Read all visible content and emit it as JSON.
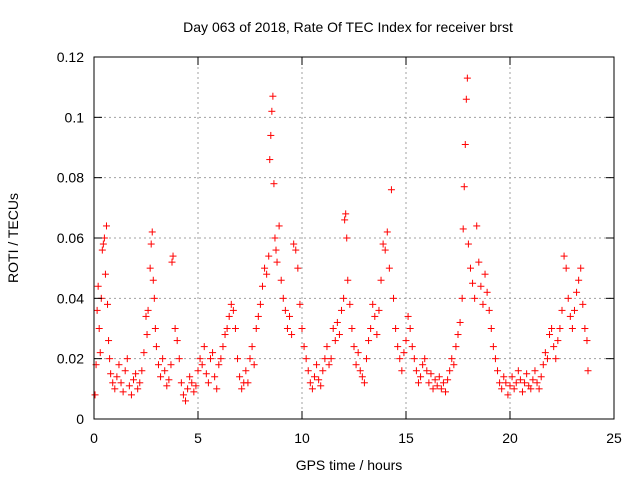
{
  "chart_data": {
    "type": "scatter",
    "title": "Day 063 of 2018, Rate Of TEC Index for receiver brst",
    "xlabel": "GPS time / hours",
    "ylabel": "ROTI / TECUs",
    "xlim": [
      0,
      25
    ],
    "ylim": [
      0,
      0.12
    ],
    "xticks": [
      0,
      5,
      10,
      15,
      20,
      25
    ],
    "xtick_labels": [
      "0",
      "5",
      "10",
      "15",
      "20",
      "25"
    ],
    "yticks": [
      0,
      0.02,
      0.04,
      0.06,
      0.08,
      0.1,
      0.12
    ],
    "ytick_labels": [
      "0",
      "0.02",
      "0.04",
      "0.06",
      "0.08",
      "0.1",
      "0.12"
    ],
    "grid": true,
    "marker": "+",
    "color": "#ff0000",
    "series": [
      {
        "name": "ROTI",
        "points": [
          [
            0.05,
            0.008
          ],
          [
            0.1,
            0.018
          ],
          [
            0.15,
            0.036
          ],
          [
            0.2,
            0.044
          ],
          [
            0.25,
            0.03
          ],
          [
            0.3,
            0.022
          ],
          [
            0.35,
            0.04
          ],
          [
            0.4,
            0.056
          ],
          [
            0.45,
            0.058
          ],
          [
            0.5,
            0.06
          ],
          [
            0.55,
            0.048
          ],
          [
            0.6,
            0.064
          ],
          [
            0.65,
            0.038
          ],
          [
            0.7,
            0.026
          ],
          [
            0.75,
            0.02
          ],
          [
            0.8,
            0.015
          ],
          [
            0.9,
            0.012
          ],
          [
            1.0,
            0.01
          ],
          [
            1.1,
            0.014
          ],
          [
            1.2,
            0.018
          ],
          [
            1.3,
            0.012
          ],
          [
            1.4,
            0.009
          ],
          [
            1.5,
            0.016
          ],
          [
            1.6,
            0.02
          ],
          [
            1.7,
            0.011
          ],
          [
            1.8,
            0.008
          ],
          [
            1.9,
            0.013
          ],
          [
            2.0,
            0.015
          ],
          [
            2.1,
            0.01
          ],
          [
            2.2,
            0.012
          ],
          [
            2.3,
            0.016
          ],
          [
            2.4,
            0.022
          ],
          [
            2.5,
            0.034
          ],
          [
            2.55,
            0.028
          ],
          [
            2.6,
            0.036
          ],
          [
            2.7,
            0.05
          ],
          [
            2.75,
            0.058
          ],
          [
            2.8,
            0.062
          ],
          [
            2.85,
            0.046
          ],
          [
            2.9,
            0.04
          ],
          [
            2.95,
            0.03
          ],
          [
            3.0,
            0.024
          ],
          [
            3.1,
            0.018
          ],
          [
            3.2,
            0.014
          ],
          [
            3.3,
            0.02
          ],
          [
            3.4,
            0.016
          ],
          [
            3.5,
            0.011
          ],
          [
            3.6,
            0.013
          ],
          [
            3.7,
            0.018
          ],
          [
            3.75,
            0.052
          ],
          [
            3.8,
            0.054
          ],
          [
            3.9,
            0.03
          ],
          [
            4.0,
            0.026
          ],
          [
            4.1,
            0.02
          ],
          [
            4.2,
            0.012
          ],
          [
            4.3,
            0.008
          ],
          [
            4.4,
            0.006
          ],
          [
            4.5,
            0.01
          ],
          [
            4.6,
            0.014
          ],
          [
            4.7,
            0.012
          ],
          [
            4.8,
            0.009
          ],
          [
            4.9,
            0.011
          ],
          [
            5.0,
            0.016
          ],
          [
            5.1,
            0.02
          ],
          [
            5.2,
            0.018
          ],
          [
            5.3,
            0.024
          ],
          [
            5.4,
            0.015
          ],
          [
            5.5,
            0.012
          ],
          [
            5.6,
            0.02
          ],
          [
            5.7,
            0.022
          ],
          [
            5.8,
            0.014
          ],
          [
            5.9,
            0.01
          ],
          [
            6.0,
            0.018
          ],
          [
            6.1,
            0.02
          ],
          [
            6.2,
            0.024
          ],
          [
            6.3,
            0.028
          ],
          [
            6.4,
            0.03
          ],
          [
            6.5,
            0.034
          ],
          [
            6.6,
            0.038
          ],
          [
            6.7,
            0.036
          ],
          [
            6.8,
            0.03
          ],
          [
            6.9,
            0.02
          ],
          [
            7.0,
            0.014
          ],
          [
            7.1,
            0.01
          ],
          [
            7.2,
            0.012
          ],
          [
            7.3,
            0.016
          ],
          [
            7.4,
            0.012
          ],
          [
            7.5,
            0.02
          ],
          [
            7.6,
            0.024
          ],
          [
            7.7,
            0.018
          ],
          [
            7.8,
            0.03
          ],
          [
            7.9,
            0.034
          ],
          [
            8.0,
            0.038
          ],
          [
            8.1,
            0.044
          ],
          [
            8.2,
            0.05
          ],
          [
            8.3,
            0.048
          ],
          [
            8.4,
            0.054
          ],
          [
            8.45,
            0.086
          ],
          [
            8.5,
            0.094
          ],
          [
            8.55,
            0.102
          ],
          [
            8.6,
            0.107
          ],
          [
            8.65,
            0.078
          ],
          [
            8.7,
            0.06
          ],
          [
            8.75,
            0.056
          ],
          [
            8.8,
            0.052
          ],
          [
            8.9,
            0.064
          ],
          [
            9.0,
            0.046
          ],
          [
            9.1,
            0.04
          ],
          [
            9.2,
            0.036
          ],
          [
            9.3,
            0.03
          ],
          [
            9.4,
            0.034
          ],
          [
            9.5,
            0.028
          ],
          [
            9.6,
            0.058
          ],
          [
            9.7,
            0.056
          ],
          [
            9.8,
            0.05
          ],
          [
            9.9,
            0.038
          ],
          [
            10.0,
            0.03
          ],
          [
            10.1,
            0.024
          ],
          [
            10.2,
            0.02
          ],
          [
            10.3,
            0.016
          ],
          [
            10.4,
            0.012
          ],
          [
            10.5,
            0.01
          ],
          [
            10.6,
            0.014
          ],
          [
            10.7,
            0.018
          ],
          [
            10.8,
            0.013
          ],
          [
            10.9,
            0.011
          ],
          [
            11.0,
            0.016
          ],
          [
            11.1,
            0.02
          ],
          [
            11.2,
            0.024
          ],
          [
            11.3,
            0.018
          ],
          [
            11.4,
            0.02
          ],
          [
            11.5,
            0.03
          ],
          [
            11.6,
            0.026
          ],
          [
            11.7,
            0.032
          ],
          [
            11.8,
            0.028
          ],
          [
            11.9,
            0.036
          ],
          [
            12.0,
            0.04
          ],
          [
            12.05,
            0.066
          ],
          [
            12.1,
            0.068
          ],
          [
            12.15,
            0.06
          ],
          [
            12.2,
            0.046
          ],
          [
            12.3,
            0.038
          ],
          [
            12.4,
            0.03
          ],
          [
            12.5,
            0.024
          ],
          [
            12.6,
            0.018
          ],
          [
            12.7,
            0.022
          ],
          [
            12.8,
            0.016
          ],
          [
            12.9,
            0.014
          ],
          [
            13.0,
            0.012
          ],
          [
            13.1,
            0.02
          ],
          [
            13.2,
            0.026
          ],
          [
            13.3,
            0.03
          ],
          [
            13.4,
            0.038
          ],
          [
            13.5,
            0.034
          ],
          [
            13.6,
            0.028
          ],
          [
            13.7,
            0.036
          ],
          [
            13.8,
            0.046
          ],
          [
            13.9,
            0.058
          ],
          [
            14.0,
            0.056
          ],
          [
            14.1,
            0.062
          ],
          [
            14.2,
            0.05
          ],
          [
            14.3,
            0.076
          ],
          [
            14.4,
            0.04
          ],
          [
            14.5,
            0.03
          ],
          [
            14.6,
            0.024
          ],
          [
            14.7,
            0.02
          ],
          [
            14.8,
            0.016
          ],
          [
            14.9,
            0.022
          ],
          [
            15.0,
            0.026
          ],
          [
            15.1,
            0.034
          ],
          [
            15.2,
            0.03
          ],
          [
            15.3,
            0.024
          ],
          [
            15.4,
            0.02
          ],
          [
            15.5,
            0.016
          ],
          [
            15.6,
            0.012
          ],
          [
            15.7,
            0.014
          ],
          [
            15.8,
            0.018
          ],
          [
            15.9,
            0.02
          ],
          [
            16.0,
            0.016
          ],
          [
            16.1,
            0.012
          ],
          [
            16.2,
            0.015
          ],
          [
            16.3,
            0.01
          ],
          [
            16.4,
            0.013
          ],
          [
            16.5,
            0.011
          ],
          [
            16.6,
            0.014
          ],
          [
            16.7,
            0.01
          ],
          [
            16.8,
            0.012
          ],
          [
            16.9,
            0.009
          ],
          [
            17.0,
            0.013
          ],
          [
            17.1,
            0.016
          ],
          [
            17.2,
            0.02
          ],
          [
            17.3,
            0.018
          ],
          [
            17.4,
            0.024
          ],
          [
            17.5,
            0.028
          ],
          [
            17.6,
            0.032
          ],
          [
            17.7,
            0.04
          ],
          [
            17.75,
            0.063
          ],
          [
            17.8,
            0.077
          ],
          [
            17.85,
            0.091
          ],
          [
            17.9,
            0.106
          ],
          [
            17.95,
            0.113
          ],
          [
            18.0,
            0.058
          ],
          [
            18.1,
            0.05
          ],
          [
            18.2,
            0.045
          ],
          [
            18.3,
            0.04
          ],
          [
            18.4,
            0.064
          ],
          [
            18.5,
            0.052
          ],
          [
            18.6,
            0.044
          ],
          [
            18.7,
            0.038
          ],
          [
            18.8,
            0.048
          ],
          [
            18.9,
            0.042
          ],
          [
            19.0,
            0.036
          ],
          [
            19.1,
            0.03
          ],
          [
            19.2,
            0.024
          ],
          [
            19.3,
            0.02
          ],
          [
            19.4,
            0.016
          ],
          [
            19.5,
            0.012
          ],
          [
            19.6,
            0.01
          ],
          [
            19.7,
            0.014
          ],
          [
            19.8,
            0.012
          ],
          [
            19.9,
            0.008
          ],
          [
            20.0,
            0.011
          ],
          [
            20.1,
            0.014
          ],
          [
            20.2,
            0.01
          ],
          [
            20.3,
            0.012
          ],
          [
            20.4,
            0.016
          ],
          [
            20.5,
            0.013
          ],
          [
            20.6,
            0.009
          ],
          [
            20.7,
            0.012
          ],
          [
            20.8,
            0.015
          ],
          [
            20.9,
            0.011
          ],
          [
            21.0,
            0.01
          ],
          [
            21.1,
            0.013
          ],
          [
            21.2,
            0.016
          ],
          [
            21.3,
            0.012
          ],
          [
            21.4,
            0.01
          ],
          [
            21.5,
            0.014
          ],
          [
            21.6,
            0.018
          ],
          [
            21.7,
            0.022
          ],
          [
            21.8,
            0.02
          ],
          [
            21.9,
            0.028
          ],
          [
            22.0,
            0.03
          ],
          [
            22.1,
            0.024
          ],
          [
            22.2,
            0.02
          ],
          [
            22.3,
            0.026
          ],
          [
            22.4,
            0.03
          ],
          [
            22.5,
            0.036
          ],
          [
            22.6,
            0.054
          ],
          [
            22.7,
            0.05
          ],
          [
            22.8,
            0.04
          ],
          [
            22.9,
            0.034
          ],
          [
            23.0,
            0.03
          ],
          [
            23.1,
            0.036
          ],
          [
            23.2,
            0.042
          ],
          [
            23.3,
            0.046
          ],
          [
            23.4,
            0.05
          ],
          [
            23.5,
            0.038
          ],
          [
            23.6,
            0.03
          ],
          [
            23.7,
            0.026
          ],
          [
            23.75,
            0.016
          ]
        ]
      }
    ]
  }
}
